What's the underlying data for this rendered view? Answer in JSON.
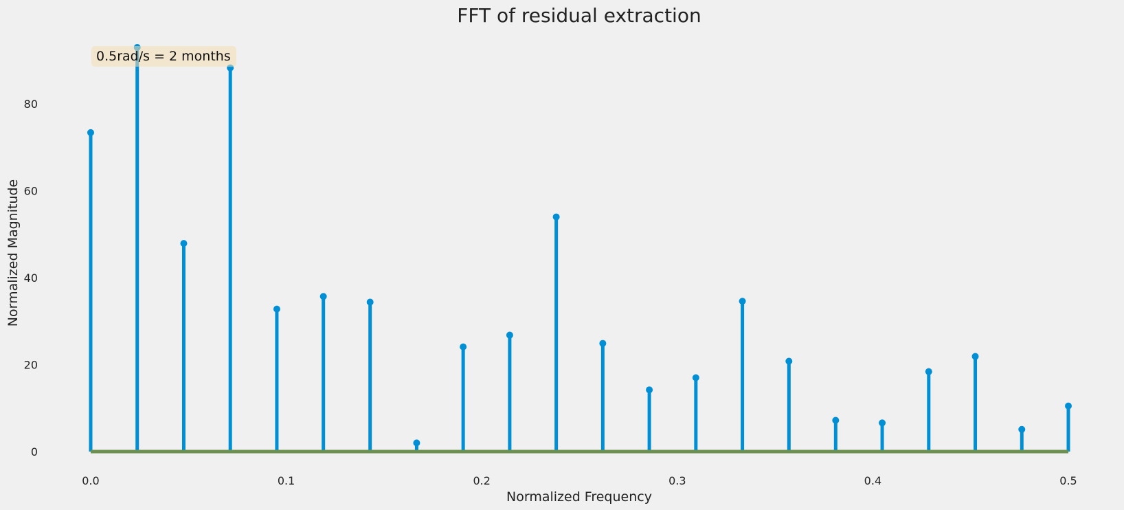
{
  "chart_data": {
    "type": "stem",
    "title": "FFT of residual extraction",
    "xlabel": "Normalized Frequency",
    "ylabel": "Normalized Magnitude",
    "xlim": [
      0.0,
      0.5
    ],
    "ylim": [
      0,
      93
    ],
    "x_ticks": [
      "0.0",
      "0.1",
      "0.2",
      "0.3",
      "0.4",
      "0.5"
    ],
    "y_ticks": [
      "0",
      "20",
      "40",
      "60",
      "80"
    ],
    "x_tick_values": [
      0.0,
      0.1,
      0.2,
      0.3,
      0.4,
      0.5
    ],
    "y_tick_values": [
      0,
      20,
      40,
      60,
      80
    ],
    "grid": false,
    "annotation": "0.5rad/s = 2 months",
    "x": [
      0.0,
      0.0238,
      0.0476,
      0.0714,
      0.0952,
      0.119,
      0.1429,
      0.1667,
      0.1905,
      0.2143,
      0.2381,
      0.2619,
      0.2857,
      0.3095,
      0.3333,
      0.3571,
      0.381,
      0.4048,
      0.4286,
      0.4524,
      0.4762,
      0.5
    ],
    "values": [
      73.4,
      93.0,
      47.9,
      88.3,
      32.8,
      35.7,
      34.4,
      2.0,
      24.1,
      26.8,
      54.0,
      24.9,
      14.2,
      17.0,
      34.6,
      20.8,
      7.2,
      6.6,
      18.4,
      21.9,
      5.1,
      10.5
    ],
    "colors": {
      "stem": "#008fd5",
      "baseline": "#6d904f",
      "annotation_box": "#f5deb3",
      "background": "#f0f0f0"
    }
  }
}
